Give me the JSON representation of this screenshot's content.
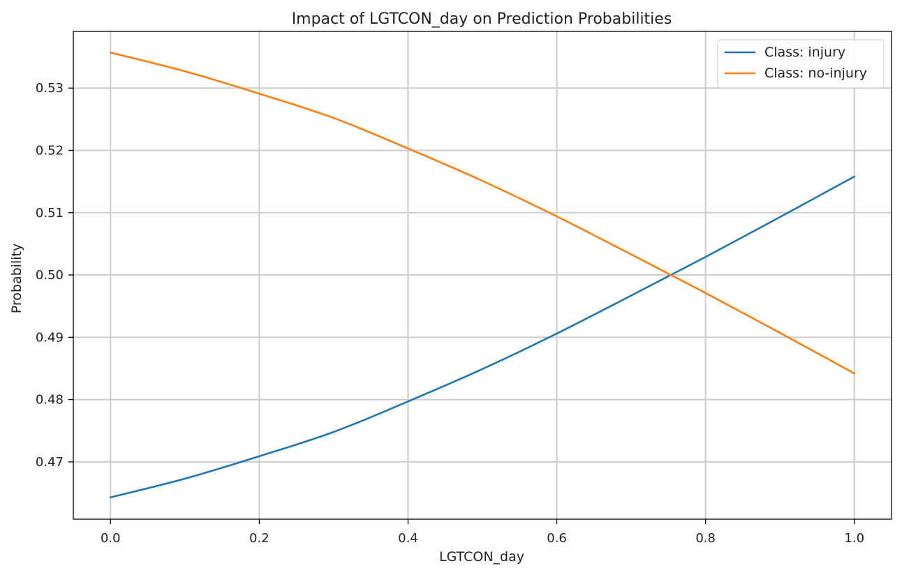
{
  "chart_data": {
    "type": "line",
    "title": "Impact of LGTCON_day on Prediction Probabilities",
    "xlabel": "LGTCON_day",
    "ylabel": "Probability",
    "xlim": [
      -0.05,
      1.05
    ],
    "ylim": [
      0.4608,
      0.5391
    ],
    "xticks": [
      0.0,
      0.2,
      0.4,
      0.6,
      0.8,
      1.0
    ],
    "xtick_labels": [
      "0.0",
      "0.2",
      "0.4",
      "0.6",
      "0.8",
      "1.0"
    ],
    "yticks": [
      0.47,
      0.48,
      0.49,
      0.5,
      0.51,
      0.52,
      0.53
    ],
    "ytick_labels": [
      "0.47",
      "0.48",
      "0.49",
      "0.50",
      "0.51",
      "0.52",
      "0.53"
    ],
    "grid": true,
    "legend_position": "top-right",
    "x": [
      0.0,
      0.1,
      0.2,
      0.3,
      0.4,
      0.5,
      0.6,
      0.7,
      0.75,
      0.8,
      0.9,
      1.0
    ],
    "series": [
      {
        "name": "Class: injury",
        "color": "#1f77b4",
        "values": [
          0.4643,
          0.4673,
          0.4709,
          0.4748,
          0.4797,
          0.4849,
          0.4906,
          0.4967,
          0.4998,
          0.5029,
          0.5093,
          0.5158
        ]
      },
      {
        "name": "Class: no-injury",
        "color": "#ff7f0e",
        "values": [
          0.5357,
          0.5327,
          0.5291,
          0.5252,
          0.5203,
          0.5151,
          0.5094,
          0.5033,
          0.5002,
          0.4971,
          0.4907,
          0.4842
        ]
      }
    ]
  }
}
